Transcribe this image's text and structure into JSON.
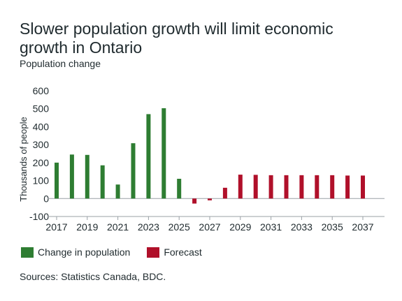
{
  "title": "Slower population growth will limit economic growth in Ontario",
  "subtitle": "Population change",
  "source": "Sources: Statistics Canada, BDC.",
  "legend": {
    "actual": "Change in population",
    "forecast": "Forecast"
  },
  "colors": {
    "actual": "#2e7d32",
    "forecast": "#b0102a",
    "axis": "#9aa0a6",
    "text": "#1f2a2e"
  },
  "chart_data": {
    "type": "bar",
    "title": "Slower population growth will limit economic growth in Ontario",
    "subtitle": "Population change",
    "ylabel": "Thousands of people",
    "xlabel": "",
    "ylim": [
      -100,
      600
    ],
    "yticks": [
      -100,
      0,
      100,
      200,
      300,
      400,
      500,
      600
    ],
    "xticks": [
      "2017",
      "2019",
      "2021",
      "2023",
      "2025",
      "2027",
      "2029",
      "2031",
      "2033",
      "2035",
      "2037"
    ],
    "grid": false,
    "legend_position": "bottom-left",
    "categories": [
      "2017",
      "2018",
      "2019",
      "2020",
      "2021",
      "2022",
      "2023",
      "2024",
      "2025",
      "2026",
      "2027",
      "2028",
      "2029",
      "2030",
      "2031",
      "2032",
      "2033",
      "2034",
      "2035",
      "2036",
      "2037"
    ],
    "series": [
      {
        "name": "Change in population",
        "color": "#2e7d32",
        "values": [
          200,
          245,
          243,
          185,
          78,
          308,
          470,
          503,
          110,
          null,
          null,
          null,
          null,
          null,
          null,
          null,
          null,
          null,
          null,
          null,
          null
        ]
      },
      {
        "name": "Forecast",
        "color": "#b0102a",
        "values": [
          null,
          null,
          null,
          null,
          null,
          null,
          null,
          null,
          null,
          -28,
          -10,
          60,
          133,
          132,
          130,
          130,
          130,
          130,
          130,
          128,
          128
        ]
      }
    ]
  }
}
